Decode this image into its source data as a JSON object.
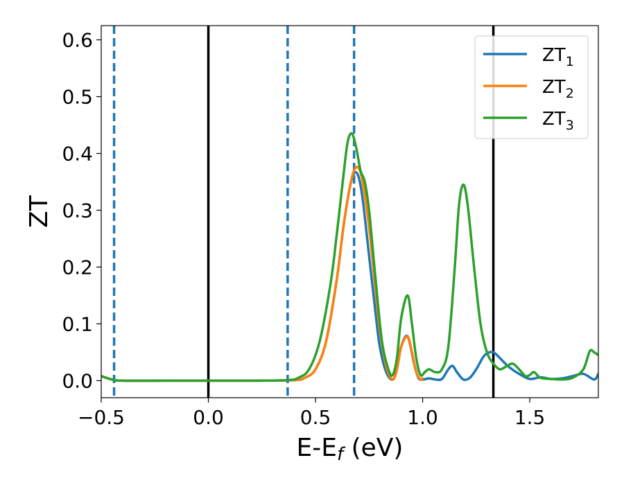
{
  "chart_data": {
    "type": "line",
    "xlabel": "E-E",
    "xlabel_sub": "f",
    "xlabel_unit": " (eV)",
    "ylabel": "ZT",
    "xlim": [
      -0.5,
      1.82
    ],
    "ylim": [
      -0.03,
      0.625
    ],
    "xticks": [
      -0.5,
      0.0,
      0.5,
      1.0,
      1.5
    ],
    "xtick_labels": [
      "−0.5",
      "0.0",
      "0.5",
      "1.0",
      "1.5"
    ],
    "yticks": [
      0.0,
      0.1,
      0.2,
      0.3,
      0.4,
      0.5,
      0.6
    ],
    "ytick_labels": [
      "0.0",
      "0.1",
      "0.2",
      "0.3",
      "0.4",
      "0.5",
      "0.6"
    ],
    "grid": false,
    "legend_position": "top-right",
    "vlines_solid": [
      0.0,
      1.33
    ],
    "vlines_dashed": [
      -0.44,
      0.37,
      0.68
    ],
    "vline_solid_color": "#000000",
    "vline_dashed_color": "#1f77b4",
    "series": [
      {
        "name": "ZT",
        "sub": "1",
        "color": "#1f77b4",
        "x": [
          -0.5,
          -0.45,
          -0.4,
          -0.2,
          0.0,
          0.2,
          0.4,
          0.45,
          0.5,
          0.55,
          0.6,
          0.63,
          0.66,
          0.68,
          0.7,
          0.72,
          0.75,
          0.78,
          0.8,
          0.83,
          0.86,
          0.88,
          0.9,
          0.93,
          0.96,
          0.98,
          1.0,
          1.03,
          1.06,
          1.09,
          1.12,
          1.14,
          1.16,
          1.19,
          1.22,
          1.25,
          1.28,
          1.3,
          1.33,
          1.36,
          1.4,
          1.45,
          1.5,
          1.55,
          1.6,
          1.65,
          1.7,
          1.75,
          1.8,
          1.82
        ],
        "y": [
          0.008,
          0.002,
          0.0,
          0.0,
          0.0,
          0.0,
          0.001,
          0.005,
          0.02,
          0.07,
          0.18,
          0.27,
          0.34,
          0.365,
          0.36,
          0.32,
          0.22,
          0.12,
          0.06,
          0.015,
          0.002,
          0.02,
          0.06,
          0.078,
          0.03,
          0.005,
          0.002,
          0.004,
          0.002,
          0.003,
          0.02,
          0.026,
          0.015,
          0.002,
          0.005,
          0.02,
          0.04,
          0.048,
          0.05,
          0.04,
          0.025,
          0.012,
          0.003,
          0.006,
          0.003,
          0.004,
          0.008,
          0.012,
          0.002,
          0.012
        ]
      },
      {
        "name": "ZT",
        "sub": "2",
        "color": "#ff7f0e",
        "x": [
          -0.5,
          -0.45,
          -0.4,
          -0.2,
          0.0,
          0.2,
          0.4,
          0.45,
          0.5,
          0.55,
          0.6,
          0.63,
          0.66,
          0.68,
          0.7,
          0.72,
          0.75,
          0.78,
          0.8,
          0.83,
          0.86,
          0.88,
          0.9,
          0.93,
          0.95,
          0.97,
          0.99,
          1.0
        ],
        "y": [
          0.008,
          0.002,
          0.0,
          0.0,
          0.0,
          0.0,
          0.001,
          0.005,
          0.02,
          0.07,
          0.18,
          0.27,
          0.34,
          0.37,
          0.375,
          0.35,
          0.27,
          0.16,
          0.09,
          0.025,
          0.002,
          0.02,
          0.06,
          0.078,
          0.05,
          0.015,
          0.002,
          0.004
        ]
      },
      {
        "name": "ZT",
        "sub": "3",
        "color": "#2ca02c",
        "x": [
          -0.5,
          -0.45,
          -0.4,
          -0.2,
          0.0,
          0.2,
          0.37,
          0.42,
          0.47,
          0.52,
          0.57,
          0.6,
          0.63,
          0.65,
          0.67,
          0.69,
          0.71,
          0.73,
          0.75,
          0.78,
          0.81,
          0.84,
          0.86,
          0.88,
          0.9,
          0.93,
          0.95,
          0.97,
          0.99,
          1.01,
          1.03,
          1.06,
          1.09,
          1.12,
          1.15,
          1.17,
          1.19,
          1.21,
          1.24,
          1.27,
          1.3,
          1.33,
          1.36,
          1.39,
          1.42,
          1.45,
          1.48,
          1.5,
          1.52,
          1.55,
          1.6,
          1.65,
          1.7,
          1.75,
          1.78,
          1.8,
          1.82
        ],
        "y": [
          0.008,
          0.002,
          0.0,
          0.0,
          0.0,
          0.0,
          0.001,
          0.005,
          0.02,
          0.07,
          0.17,
          0.26,
          0.36,
          0.42,
          0.435,
          0.41,
          0.37,
          0.35,
          0.3,
          0.18,
          0.07,
          0.02,
          0.01,
          0.04,
          0.11,
          0.15,
          0.1,
          0.04,
          0.01,
          0.015,
          0.02,
          0.015,
          0.02,
          0.06,
          0.2,
          0.31,
          0.345,
          0.31,
          0.2,
          0.1,
          0.05,
          0.03,
          0.02,
          0.025,
          0.03,
          0.02,
          0.008,
          0.01,
          0.015,
          0.005,
          0.003,
          0.002,
          0.005,
          0.02,
          0.052,
          0.05,
          0.045
        ]
      }
    ]
  }
}
